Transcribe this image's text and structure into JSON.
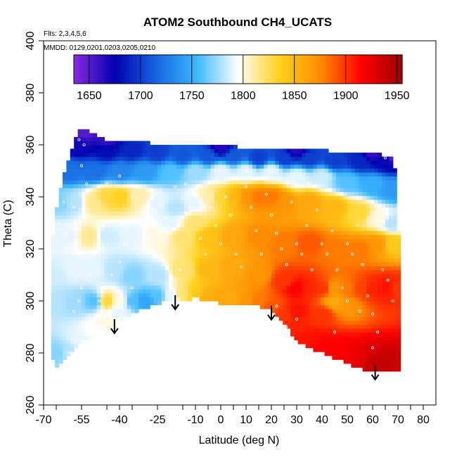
{
  "chart_data": {
    "type": "heatmap",
    "title": "ATOM2 Southbound CH4_UCATS",
    "subtitle_flights": "Flts: 2,3,4,5,6",
    "subtitle_dates": "MMDD: 0129,0201,0203,0205,0210",
    "xlabel": "Latitude (deg N)",
    "ylabel": "Theta (C)",
    "xlim": [
      -70,
      80
    ],
    "ylim": [
      260,
      400
    ],
    "x_ticks": [
      -70,
      -55,
      -40,
      -25,
      -10,
      0,
      10,
      20,
      30,
      40,
      50,
      60,
      70,
      80
    ],
    "x_tick_labels": [
      "-70",
      "-55",
      "-40",
      "-25",
      "-10",
      "0",
      "10",
      "20",
      "30",
      "40",
      "50",
      "60",
      "70",
      "80"
    ],
    "y_ticks": [
      260,
      280,
      300,
      320,
      340,
      360,
      380,
      400
    ],
    "y_tick_labels": [
      "260",
      "280",
      "300",
      "320",
      "340",
      "360",
      "380",
      "400"
    ],
    "colorbar": {
      "min": 1635,
      "max": 1955,
      "ticks": [
        1650,
        1700,
        1750,
        1800,
        1850,
        1900,
        1950
      ],
      "tick_labels": [
        "1650",
        "1700",
        "1750",
        "1800",
        "1850",
        "1900",
        "1950"
      ],
      "colors": [
        "#8a2be2",
        "#0000b0",
        "#1565e0",
        "#3cb8ff",
        "#ffffff",
        "#ffd21e",
        "#ff8c00",
        "#ff0000",
        "#a00000"
      ]
    },
    "arrows_latitude": [
      -42,
      -18,
      20,
      61
    ],
    "top_boundary": [
      [
        -56,
        366
      ],
      [
        -53,
        366
      ],
      [
        -45,
        362
      ],
      [
        -35,
        362
      ],
      [
        -25,
        360
      ],
      [
        -15,
        360
      ],
      [
        -5,
        360
      ],
      [
        10,
        359
      ],
      [
        20,
        359
      ],
      [
        30,
        358
      ],
      [
        40,
        358
      ],
      [
        50,
        357
      ],
      [
        60,
        357
      ],
      [
        68,
        355
      ]
    ],
    "bottom_boundary": [
      [
        -66,
        274
      ],
      [
        -62,
        277
      ],
      [
        -55,
        284
      ],
      [
        -50,
        286
      ],
      [
        -45,
        289
      ],
      [
        -40,
        292
      ],
      [
        -35,
        295
      ],
      [
        -30,
        297
      ],
      [
        -25,
        299
      ],
      [
        -20,
        300
      ],
      [
        -15,
        300
      ],
      [
        -10,
        301
      ],
      [
        -5,
        300
      ],
      [
        0,
        299
      ],
      [
        5,
        299
      ],
      [
        10,
        298
      ],
      [
        15,
        298
      ],
      [
        20,
        296
      ],
      [
        25,
        291
      ],
      [
        30,
        285
      ],
      [
        35,
        282
      ],
      [
        40,
        280
      ],
      [
        45,
        278
      ],
      [
        50,
        276
      ],
      [
        55,
        274
      ],
      [
        60,
        273
      ],
      [
        66,
        273
      ],
      [
        70,
        273
      ],
      [
        71,
        272
      ]
    ],
    "left_boundary": [
      [
        -66,
        274
      ],
      [
        -67,
        290
      ],
      [
        -67,
        310
      ],
      [
        -66,
        330
      ],
      [
        -63,
        345
      ],
      [
        -60,
        355
      ],
      [
        -57,
        363
      ],
      [
        -56,
        366
      ]
    ],
    "right_boundary": [
      [
        68,
        355
      ],
      [
        70,
        345
      ],
      [
        70,
        330
      ],
      [
        71,
        315
      ],
      [
        71,
        300
      ],
      [
        71,
        285
      ],
      [
        71,
        272
      ]
    ],
    "field_points": [
      [
        -65,
        280,
        1770
      ],
      [
        -60,
        280,
        1780
      ],
      [
        -55,
        285,
        1790
      ],
      [
        -50,
        288,
        1795
      ],
      [
        -45,
        292,
        1800
      ],
      [
        -40,
        296,
        1790
      ],
      [
        -65,
        300,
        1780
      ],
      [
        -58,
        300,
        1775
      ],
      [
        -50,
        300,
        1760
      ],
      [
        -45,
        300,
        1830
      ],
      [
        -40,
        300,
        1800
      ],
      [
        -35,
        300,
        1760
      ],
      [
        -30,
        300,
        1745
      ],
      [
        -25,
        302,
        1760
      ],
      [
        -20,
        302,
        1790
      ],
      [
        -15,
        303,
        1820
      ],
      [
        -10,
        303,
        1840
      ],
      [
        -5,
        302,
        1855
      ],
      [
        0,
        301,
        1860
      ],
      [
        5,
        301,
        1860
      ],
      [
        10,
        300,
        1870
      ],
      [
        15,
        300,
        1880
      ],
      [
        20,
        298,
        1890
      ],
      [
        25,
        295,
        1900
      ],
      [
        30,
        290,
        1905
      ],
      [
        35,
        286,
        1910
      ],
      [
        40,
        283,
        1915
      ],
      [
        45,
        281,
        1915
      ],
      [
        50,
        279,
        1920
      ],
      [
        55,
        278,
        1925
      ],
      [
        60,
        276,
        1940
      ],
      [
        65,
        275,
        1940
      ],
      [
        70,
        274,
        1935
      ],
      [
        -65,
        310,
        1785
      ],
      [
        -58,
        312,
        1790
      ],
      [
        -50,
        312,
        1790
      ],
      [
        -42,
        312,
        1780
      ],
      [
        -35,
        310,
        1770
      ],
      [
        -25,
        310,
        1780
      ],
      [
        -15,
        312,
        1820
      ],
      [
        -5,
        312,
        1850
      ],
      [
        5,
        312,
        1860
      ],
      [
        15,
        310,
        1870
      ],
      [
        25,
        308,
        1900
      ],
      [
        30,
        305,
        1915
      ],
      [
        35,
        305,
        1905
      ],
      [
        40,
        305,
        1900
      ],
      [
        45,
        305,
        1870
      ],
      [
        50,
        305,
        1880
      ],
      [
        55,
        305,
        1895
      ],
      [
        60,
        305,
        1905
      ],
      [
        65,
        305,
        1910
      ],
      [
        70,
        305,
        1900
      ],
      [
        45,
        300,
        1860
      ],
      [
        50,
        298,
        1870
      ],
      [
        40,
        295,
        1900
      ],
      [
        30,
        296,
        1910
      ],
      [
        -65,
        325,
        1790
      ],
      [
        -60,
        325,
        1790
      ],
      [
        -52,
        325,
        1815
      ],
      [
        -45,
        325,
        1785
      ],
      [
        -35,
        325,
        1790
      ],
      [
        -25,
        325,
        1800
      ],
      [
        -15,
        325,
        1820
      ],
      [
        -5,
        325,
        1845
      ],
      [
        5,
        325,
        1860
      ],
      [
        15,
        325,
        1875
      ],
      [
        25,
        322,
        1880
      ],
      [
        35,
        322,
        1890
      ],
      [
        45,
        320,
        1880
      ],
      [
        55,
        320,
        1880
      ],
      [
        62,
        322,
        1870
      ],
      [
        68,
        322,
        1840
      ],
      [
        -63,
        338,
        1770
      ],
      [
        -58,
        338,
        1780
      ],
      [
        -50,
        338,
        1815
      ],
      [
        -45,
        340,
        1830
      ],
      [
        -40,
        340,
        1835
      ],
      [
        -32,
        340,
        1810
      ],
      [
        -25,
        338,
        1790
      ],
      [
        -18,
        336,
        1780
      ],
      [
        -10,
        338,
        1790
      ],
      [
        -5,
        340,
        1810
      ],
      [
        0,
        340,
        1830
      ],
      [
        5,
        340,
        1850
      ],
      [
        10,
        340,
        1870
      ],
      [
        15,
        340,
        1880
      ],
      [
        20,
        340,
        1880
      ],
      [
        25,
        338,
        1870
      ],
      [
        35,
        338,
        1860
      ],
      [
        45,
        336,
        1850
      ],
      [
        55,
        334,
        1830
      ],
      [
        62,
        332,
        1800
      ],
      [
        68,
        330,
        1780
      ],
      [
        -20,
        330,
        1790
      ],
      [
        -10,
        330,
        1820
      ],
      [
        -60,
        350,
        1720
      ],
      [
        -50,
        350,
        1720
      ],
      [
        -40,
        350,
        1730
      ],
      [
        -30,
        350,
        1740
      ],
      [
        -20,
        350,
        1760
      ],
      [
        -10,
        350,
        1775
      ],
      [
        0,
        350,
        1790
      ],
      [
        10,
        350,
        1790
      ],
      [
        20,
        350,
        1790
      ],
      [
        30,
        348,
        1790
      ],
      [
        40,
        348,
        1785
      ],
      [
        50,
        346,
        1760
      ],
      [
        60,
        345,
        1750
      ],
      [
        68,
        343,
        1740
      ],
      [
        -56,
        360,
        1670
      ],
      [
        -45,
        358,
        1680
      ],
      [
        -35,
        358,
        1690
      ],
      [
        -25,
        357,
        1700
      ],
      [
        -15,
        356,
        1710
      ],
      [
        -5,
        356,
        1710
      ],
      [
        5,
        356,
        1710
      ],
      [
        15,
        355,
        1700
      ],
      [
        25,
        355,
        1700
      ],
      [
        35,
        355,
        1700
      ],
      [
        45,
        354,
        1700
      ],
      [
        55,
        354,
        1690
      ],
      [
        65,
        354,
        1680
      ],
      [
        68,
        355,
        1650
      ],
      [
        -54,
        365,
        1650
      ],
      [
        -45,
        362,
        1660
      ],
      [
        0,
        359,
        1665
      ],
      [
        30,
        358,
        1665
      ],
      [
        60,
        357,
        1660
      ]
    ],
    "sample_points": [
      [
        -62,
        338
      ],
      [
        -64,
        330
      ],
      [
        -61,
        326
      ],
      [
        -58,
        336
      ],
      [
        -55,
        352
      ],
      [
        -53,
        345
      ],
      [
        -50,
        318
      ],
      [
        -52,
        310
      ],
      [
        -55,
        305
      ],
      [
        -48,
        300
      ],
      [
        -45,
        296
      ],
      [
        -43,
        310
      ],
      [
        -40,
        315
      ],
      [
        -38,
        322
      ],
      [
        -35,
        305
      ],
      [
        -33,
        318
      ],
      [
        -30,
        328
      ],
      [
        -27,
        335
      ],
      [
        -24,
        342
      ],
      [
        -22,
        332
      ],
      [
        -20,
        326
      ],
      [
        -18,
        344
      ],
      [
        -16,
        312
      ],
      [
        -14,
        345
      ],
      [
        -12,
        334
      ],
      [
        -10,
        341
      ],
      [
        -8,
        324
      ],
      [
        -6,
        318
      ],
      [
        -4,
        336
      ],
      [
        -2,
        329
      ],
      [
        0,
        322
      ],
      [
        2,
        340
      ],
      [
        4,
        333
      ],
      [
        6,
        318
      ],
      [
        8,
        313
      ],
      [
        10,
        344
      ],
      [
        12,
        336
      ],
      [
        14,
        327
      ],
      [
        16,
        318
      ],
      [
        18,
        341
      ],
      [
        20,
        333
      ],
      [
        22,
        326
      ],
      [
        24,
        320
      ],
      [
        26,
        314
      ],
      [
        28,
        338
      ],
      [
        30,
        322
      ],
      [
        32,
        318
      ],
      [
        34,
        329
      ],
      [
        36,
        312
      ],
      [
        38,
        335
      ],
      [
        40,
        322
      ],
      [
        42,
        318
      ],
      [
        44,
        327
      ],
      [
        46,
        312
      ],
      [
        48,
        305
      ],
      [
        50,
        322
      ],
      [
        52,
        318
      ],
      [
        54,
        329
      ],
      [
        56,
        314
      ],
      [
        58,
        302
      ],
      [
        60,
        295
      ],
      [
        62,
        288
      ],
      [
        64,
        312
      ],
      [
        66,
        308
      ],
      [
        68,
        300
      ],
      [
        -60,
        280
      ],
      [
        -58,
        296
      ],
      [
        -56,
        300
      ],
      [
        -52,
        294
      ],
      [
        -46,
        286
      ],
      [
        22,
        298
      ],
      [
        26,
        290
      ],
      [
        30,
        293
      ],
      [
        45,
        288
      ],
      [
        50,
        300
      ],
      [
        55,
        296
      ],
      [
        60,
        282
      ],
      [
        -56,
        362
      ],
      [
        -54,
        360
      ],
      [
        -45,
        345
      ],
      [
        -35,
        340
      ],
      [
        35,
        345
      ],
      [
        65,
        355
      ],
      [
        10,
        350
      ],
      [
        -40,
        348
      ]
    ]
  }
}
